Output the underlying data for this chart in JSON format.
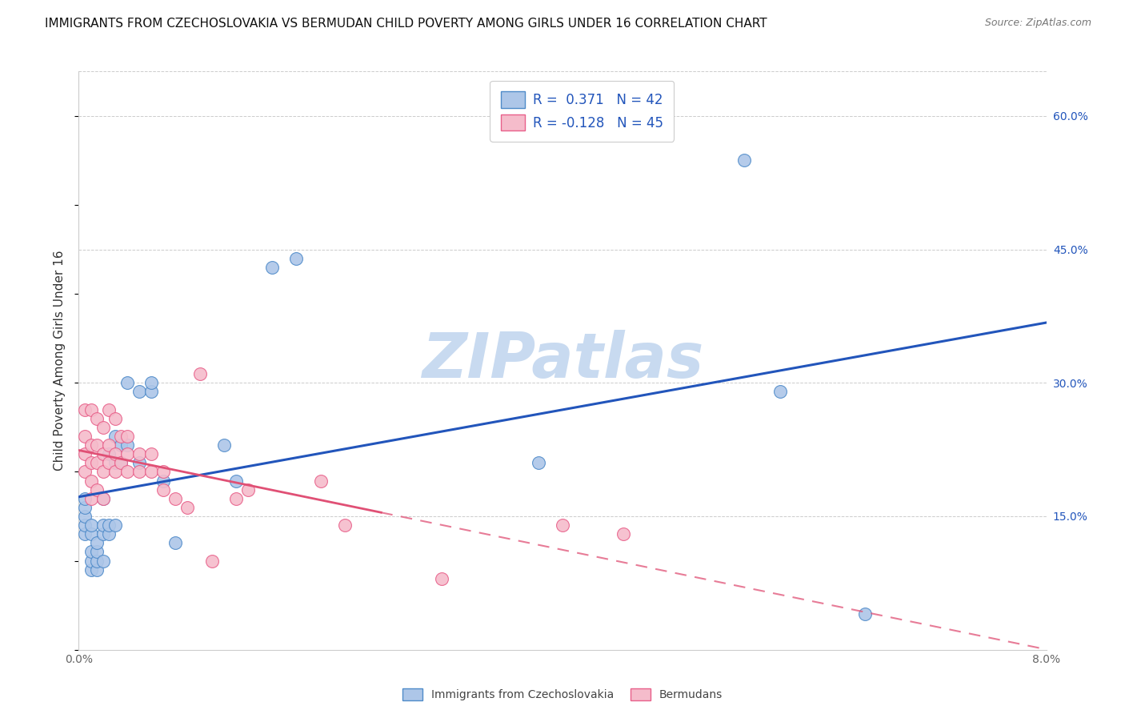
{
  "title": "IMMIGRANTS FROM CZECHOSLOVAKIA VS BERMUDAN CHILD POVERTY AMONG GIRLS UNDER 16 CORRELATION CHART",
  "source": "Source: ZipAtlas.com",
  "xlabel_blue": "Immigrants from Czechoslovakia",
  "xlabel_pink": "Bermudans",
  "ylabel": "Child Poverty Among Girls Under 16",
  "watermark": "ZIPatlas",
  "legend_blue_R": "0.371",
  "legend_blue_N": "42",
  "legend_pink_R": "-0.128",
  "legend_pink_N": "45",
  "xlim": [
    0.0,
    0.08
  ],
  "ylim": [
    0.0,
    0.65
  ],
  "right_yticks": [
    0.15,
    0.3,
    0.45,
    0.6
  ],
  "right_yticklabels": [
    "15.0%",
    "30.0%",
    "45.0%",
    "60.0%"
  ],
  "blue_scatter_x": [
    0.0005,
    0.0005,
    0.0005,
    0.0005,
    0.0005,
    0.001,
    0.001,
    0.001,
    0.001,
    0.001,
    0.0015,
    0.0015,
    0.0015,
    0.0015,
    0.002,
    0.002,
    0.002,
    0.002,
    0.0025,
    0.0025,
    0.0025,
    0.003,
    0.003,
    0.003,
    0.0035,
    0.0035,
    0.004,
    0.004,
    0.005,
    0.005,
    0.006,
    0.006,
    0.007,
    0.008,
    0.012,
    0.013,
    0.016,
    0.018,
    0.038,
    0.055,
    0.058,
    0.065
  ],
  "blue_scatter_y": [
    0.13,
    0.14,
    0.15,
    0.16,
    0.17,
    0.09,
    0.1,
    0.11,
    0.13,
    0.14,
    0.09,
    0.1,
    0.11,
    0.12,
    0.1,
    0.13,
    0.14,
    0.17,
    0.13,
    0.14,
    0.22,
    0.14,
    0.21,
    0.24,
    0.21,
    0.23,
    0.23,
    0.3,
    0.21,
    0.29,
    0.29,
    0.3,
    0.19,
    0.12,
    0.23,
    0.19,
    0.43,
    0.44,
    0.21,
    0.55,
    0.29,
    0.04
  ],
  "pink_scatter_x": [
    0.0005,
    0.0005,
    0.0005,
    0.0005,
    0.001,
    0.001,
    0.001,
    0.001,
    0.001,
    0.0015,
    0.0015,
    0.0015,
    0.0015,
    0.002,
    0.002,
    0.002,
    0.002,
    0.0025,
    0.0025,
    0.0025,
    0.003,
    0.003,
    0.003,
    0.0035,
    0.0035,
    0.004,
    0.004,
    0.004,
    0.005,
    0.005,
    0.006,
    0.006,
    0.007,
    0.007,
    0.008,
    0.009,
    0.01,
    0.011,
    0.013,
    0.014,
    0.02,
    0.022,
    0.03,
    0.04,
    0.045
  ],
  "pink_scatter_y": [
    0.2,
    0.22,
    0.24,
    0.27,
    0.17,
    0.19,
    0.21,
    0.23,
    0.27,
    0.18,
    0.21,
    0.23,
    0.26,
    0.17,
    0.2,
    0.22,
    0.25,
    0.21,
    0.23,
    0.27,
    0.2,
    0.22,
    0.26,
    0.21,
    0.24,
    0.2,
    0.22,
    0.24,
    0.2,
    0.22,
    0.2,
    0.22,
    0.18,
    0.2,
    0.17,
    0.16,
    0.31,
    0.1,
    0.17,
    0.18,
    0.19,
    0.14,
    0.08,
    0.14,
    0.13
  ],
  "blue_color": "#adc6e8",
  "blue_edge_color": "#4f8bc9",
  "pink_color": "#f5bccb",
  "pink_edge_color": "#e8608a",
  "trendline_blue_color": "#2255bb",
  "trendline_pink_color": "#e05075",
  "grid_color": "#cccccc",
  "background_color": "#ffffff",
  "title_fontsize": 11,
  "axis_label_fontsize": 11,
  "tick_fontsize": 10,
  "legend_fontsize": 12,
  "watermark_fontsize": 56,
  "watermark_color": "#c8daf0"
}
